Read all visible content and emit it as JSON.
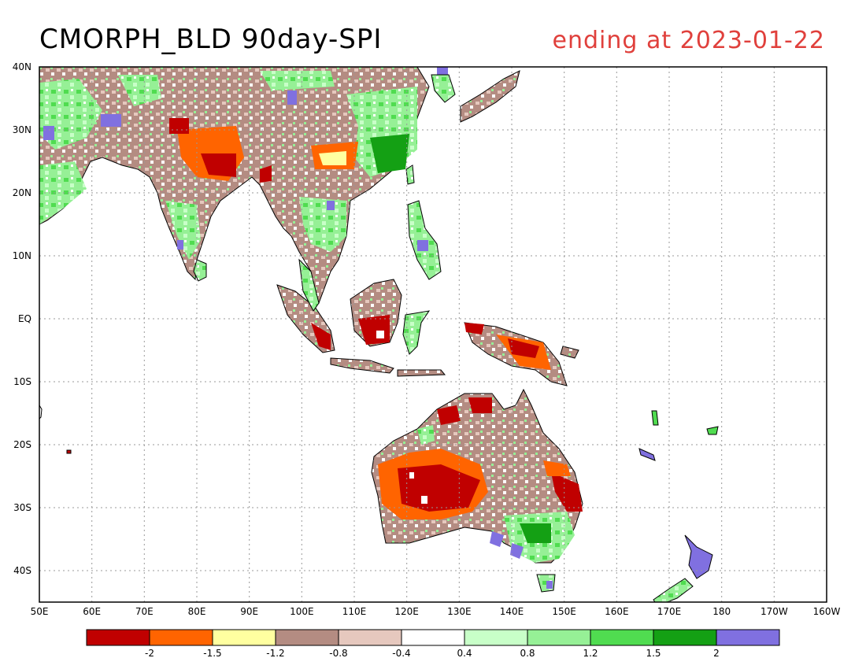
{
  "title": "CMORPH_BLD 90day-SPI",
  "subtitle": "ending at 2023-01-22",
  "colors": {
    "title_left": "#000000",
    "title_right": "#e0403c",
    "ocean": "#ffffff",
    "coast": "#000000",
    "grid": "#999999"
  },
  "lat_labels": [
    "40N",
    "30N",
    "20N",
    "10N",
    "EQ",
    "10S",
    "20S",
    "30S",
    "40S"
  ],
  "lon_labels": [
    "50E",
    "60E",
    "70E",
    "80E",
    "90E",
    "100E",
    "110E",
    "120E",
    "130E",
    "140E",
    "150E",
    "160E",
    "170E",
    "180",
    "170W",
    "160W"
  ],
  "colorbar": {
    "bins": [
      {
        "color": "#c00000"
      },
      {
        "color": "#ff6400"
      },
      {
        "color": "#ffffa0"
      },
      {
        "color": "#b48c82"
      },
      {
        "color": "#e6c8be"
      },
      {
        "color": "#ffffff"
      },
      {
        "color": "#c8ffc8"
      },
      {
        "color": "#96f096"
      },
      {
        "color": "#50dc50"
      },
      {
        "color": "#14a014"
      },
      {
        "color": "#8070e0"
      }
    ],
    "labels": [
      "-2",
      "-1.5",
      "-1.2",
      "-0.8",
      "-0.4",
      "0.4",
      "0.8",
      "1.2",
      "1.5",
      "2"
    ]
  }
}
